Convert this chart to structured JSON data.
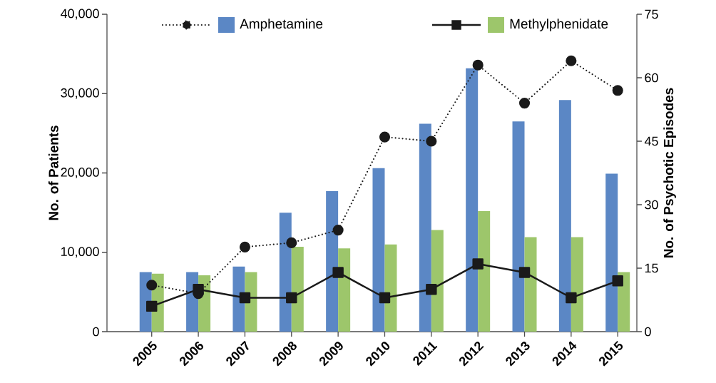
{
  "chart_data": {
    "type": "bar",
    "categories": [
      "2005",
      "2006",
      "2007",
      "2008",
      "2009",
      "2010",
      "2011",
      "2012",
      "2013",
      "2014",
      "2015"
    ],
    "ylabel": "No. of Patients",
    "y2label": "No. of Psychotic Episodes",
    "series": [
      {
        "name": "Amphetamine",
        "color": "#5b87c5",
        "values": [
          7500,
          7500,
          8200,
          15000,
          17700,
          20600,
          26200,
          33200,
          26500,
          29200,
          19900
        ]
      },
      {
        "name": "Methylphenidate",
        "color": "#9dc66b",
        "values": [
          7300,
          7100,
          7500,
          10700,
          10500,
          11000,
          12800,
          15200,
          11900,
          11900,
          7500
        ]
      },
      {
        "type": "line",
        "axis": "y2",
        "color": "#1a1a1a",
        "marker": "circle",
        "line_style": "dotted",
        "values": [
          11,
          9,
          20,
          21,
          24,
          46,
          45,
          63,
          54,
          64,
          57
        ]
      },
      {
        "type": "line",
        "axis": "y2",
        "color": "#1a1a1a",
        "marker": "square",
        "line_style": "solid",
        "values": [
          6,
          10,
          8,
          8,
          14,
          8,
          10,
          16,
          14,
          8,
          12
        ]
      }
    ],
    "ylim": [
      0,
      40000
    ],
    "yticks": [
      0,
      {
        "value": 10000,
        "label": "10,000"
      },
      {
        "value": 20000,
        "label": "20,000"
      },
      {
        "value": 30000,
        "label": "30,000"
      },
      {
        "value": 40000,
        "label": "40,000"
      }
    ],
    "y2lim": [
      0,
      75
    ],
    "y2ticks": [
      0,
      15,
      30,
      45,
      60,
      75
    ],
    "legend": "top",
    "grid": false
  }
}
